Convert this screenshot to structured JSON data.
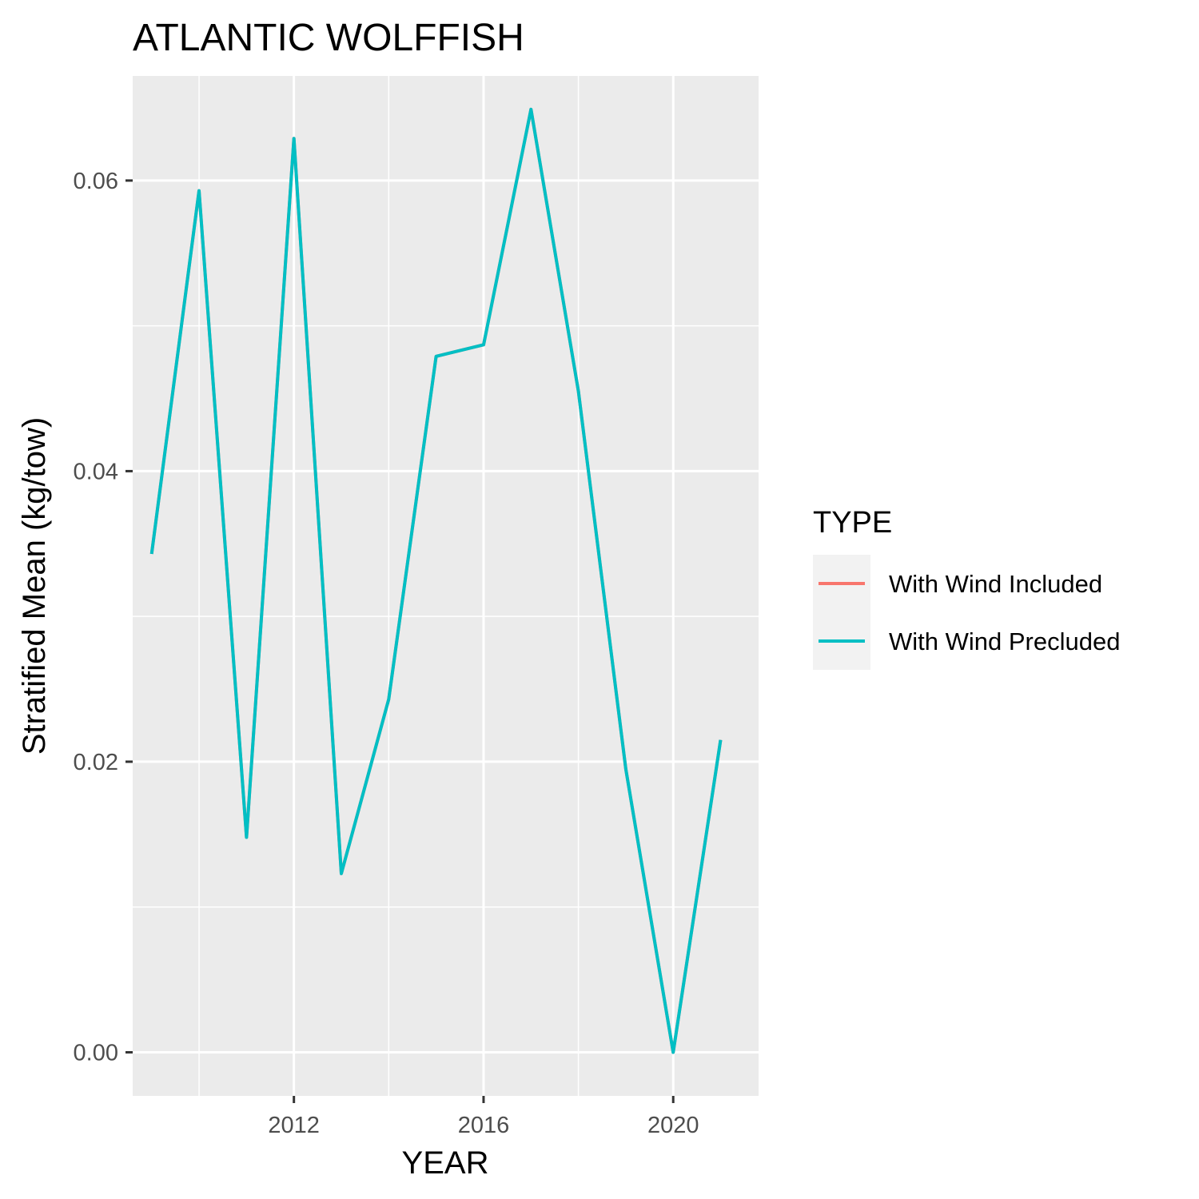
{
  "chart_data": {
    "type": "line",
    "title": "ATLANTIC WOLFFISH",
    "xlabel": "YEAR",
    "ylabel": "Stratified Mean (kg/tow)",
    "xlim": [
      2008.6,
      2021.8
    ],
    "ylim": [
      -0.003,
      0.0672
    ],
    "x_ticks": [
      {
        "value": 2012,
        "label": "2012"
      },
      {
        "value": 2016,
        "label": "2016"
      },
      {
        "value": 2020,
        "label": "2020"
      }
    ],
    "x_minor": [
      2010,
      2014,
      2018
    ],
    "y_ticks": [
      {
        "value": 0.0,
        "label": "0.00"
      },
      {
        "value": 0.02,
        "label": "0.02"
      },
      {
        "value": 0.04,
        "label": "0.04"
      },
      {
        "value": 0.06,
        "label": "0.06"
      }
    ],
    "y_minor": [
      0.01,
      0.03,
      0.05
    ],
    "grid": true,
    "legend": {
      "title": "TYPE",
      "position": "right"
    },
    "series": [
      {
        "name": "With Wind Included",
        "color": "#F8766D",
        "x": [
          2009,
          2010,
          2011,
          2012,
          2013,
          2014,
          2015,
          2016,
          2017,
          2018,
          2019,
          2020,
          2021
        ],
        "values": [
          0.0343,
          0.0593,
          0.0148,
          0.0629,
          0.0123,
          0.0243,
          0.0479,
          0.0487,
          0.0649,
          0.0455,
          0.0195,
          0.0,
          0.0215
        ]
      },
      {
        "name": "With Wind Precluded",
        "color": "#00BFC4",
        "x": [
          2009,
          2010,
          2011,
          2012,
          2013,
          2014,
          2015,
          2016,
          2017,
          2018,
          2019,
          2020,
          2021
        ],
        "values": [
          0.0343,
          0.0593,
          0.0148,
          0.0629,
          0.0123,
          0.0243,
          0.0479,
          0.0487,
          0.0649,
          0.0455,
          0.0195,
          0.0,
          0.0215
        ]
      }
    ]
  }
}
